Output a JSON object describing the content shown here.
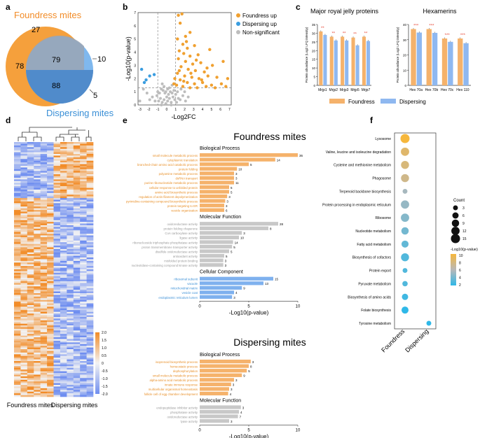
{
  "colors": {
    "orange": "#f5a55a",
    "orange_dark": "#f28c28",
    "blue": "#6fa8e8",
    "blue_light": "#8fc0f0",
    "blue_dark": "#3a8fd6",
    "grey": "#b5b5b5",
    "sig": "#e74c3c"
  },
  "panels": {
    "a": "a",
    "b": "b",
    "c": "c",
    "d": "d",
    "e": "e",
    "f": "f"
  },
  "panel_a": {
    "foundress_label": "Foundress mites",
    "dispersing_label": "Dispersing mites",
    "n_foundress_only": "78",
    "n_top": "27",
    "n_center": "79",
    "n_overlap": "88",
    "n_right_10": "10",
    "n_right_5": "5"
  },
  "chart_data": [
    {
      "id": "volcano",
      "type": "scatter",
      "xlabel": "-Log2FC",
      "ylabel": "-Log10(p-value)",
      "xlim": [
        -3.2,
        7.2
      ],
      "ylim": [
        0,
        7
      ],
      "xticks": [
        "-3",
        "-2",
        "-1",
        "0",
        "1",
        "2",
        "3",
        "4",
        "5",
        "6",
        "7"
      ],
      "yticks": [
        "0",
        "1",
        "2",
        "3",
        "4",
        "5",
        "6",
        "7"
      ],
      "legend": [
        "Foundress up",
        "Dispersing up",
        "Non-significant"
      ],
      "foundress_up": [
        [
          1.3,
          6.8
        ],
        [
          1.7,
          6.9
        ],
        [
          1.5,
          6.2
        ],
        [
          2.1,
          5.2
        ],
        [
          2.6,
          5.5
        ],
        [
          1.2,
          5.0
        ],
        [
          1.8,
          4.6
        ],
        [
          2.3,
          4.3
        ],
        [
          3.1,
          4.5
        ],
        [
          1.4,
          4.1
        ],
        [
          1.9,
          3.9
        ],
        [
          2.6,
          3.7
        ],
        [
          3.5,
          3.8
        ],
        [
          4.8,
          4.2
        ],
        [
          1.3,
          3.5
        ],
        [
          2.1,
          3.3
        ],
        [
          2.9,
          3.1
        ],
        [
          3.8,
          3.2
        ],
        [
          5.1,
          3.0
        ],
        [
          6.3,
          3.3
        ],
        [
          1.6,
          2.9
        ],
        [
          2.4,
          2.7
        ],
        [
          3.2,
          2.6
        ],
        [
          4.2,
          2.5
        ],
        [
          1.2,
          2.4
        ],
        [
          2.0,
          2.2
        ],
        [
          2.8,
          2.1
        ],
        [
          3.6,
          2.0
        ],
        [
          4.6,
          2.2
        ],
        [
          5.6,
          2.1
        ],
        [
          6.8,
          2.0
        ],
        [
          1.5,
          1.9
        ],
        [
          2.3,
          1.7
        ],
        [
          3.1,
          1.6
        ],
        [
          4.0,
          1.7
        ],
        [
          5.0,
          1.5
        ],
        [
          6.1,
          1.6
        ],
        [
          1.1,
          1.5
        ],
        [
          1.8,
          1.4
        ],
        [
          2.6,
          1.3
        ],
        [
          3.4,
          1.3
        ],
        [
          4.4,
          1.4
        ],
        [
          5.4,
          1.3
        ],
        [
          1.4,
          2.6
        ],
        [
          2.2,
          4.8
        ],
        [
          3.3,
          3.4
        ],
        [
          4.5,
          2.8
        ],
        [
          1.9,
          1.8
        ],
        [
          2.7,
          2.4
        ],
        [
          3.9,
          1.9
        ],
        [
          6.6,
          1.4
        ],
        [
          0.9,
          2.0
        ],
        [
          0.8,
          1.6
        ]
      ],
      "dispersing_up": [
        [
          -2.8,
          2.7
        ],
        [
          -2.3,
          1.9
        ],
        [
          -1.9,
          2.2
        ],
        [
          -1.4,
          2.3
        ],
        [
          -2.5,
          1.7
        ]
      ],
      "nonsig": [
        [
          -0.5,
          0.2
        ],
        [
          -0.3,
          0.4
        ],
        [
          -0.1,
          0.1
        ],
        [
          0.1,
          0.3
        ],
        [
          0.3,
          0.5
        ],
        [
          0.5,
          0.2
        ],
        [
          0.7,
          0.6
        ],
        [
          -0.7,
          0.5
        ],
        [
          -0.9,
          0.3
        ],
        [
          0.9,
          0.4
        ],
        [
          1.1,
          0.2
        ],
        [
          1.3,
          0.5
        ],
        [
          -1.1,
          0.7
        ],
        [
          0.2,
          0.8
        ],
        [
          -0.2,
          0.9
        ],
        [
          0.4,
          1.0
        ],
        [
          -0.4,
          1.1
        ],
        [
          0.6,
          0.9
        ],
        [
          -0.6,
          1.2
        ],
        [
          0.8,
          1.1
        ],
        [
          -0.8,
          0.9
        ],
        [
          0.0,
          0.6
        ],
        [
          1.5,
          0.4
        ],
        [
          1.8,
          0.7
        ],
        [
          2.1,
          0.3
        ],
        [
          2.4,
          0.6
        ],
        [
          -1.3,
          0.3
        ],
        [
          -1.6,
          0.6
        ],
        [
          -1.9,
          0.4
        ],
        [
          -2.2,
          0.9
        ],
        [
          0.3,
          1.3
        ],
        [
          -0.3,
          1.4
        ],
        [
          0.6,
          1.5
        ],
        [
          -0.5,
          1.6
        ],
        [
          0.1,
          1.2
        ],
        [
          -0.1,
          1.0
        ],
        [
          1.0,
          0.8
        ],
        [
          1.2,
          1.0
        ],
        [
          -1.0,
          1.0
        ],
        [
          2.0,
          1.0
        ],
        [
          -2.6,
          1.2
        ],
        [
          -3.0,
          0.3
        ],
        [
          0.5,
          0.0
        ],
        [
          -0.6,
          0.0
        ],
        [
          1.6,
          1.2
        ]
      ]
    },
    {
      "id": "mrjp",
      "type": "bar",
      "title": "Major royal jelly proteins",
      "ylabel": "Protein abundance (Log2 LFQ intensity)",
      "categories": [
        "Mrjp1",
        "Mrjp2",
        "Mrjp3",
        "Mrjp5",
        "Mrjp7"
      ],
      "ylim": [
        0,
        35
      ],
      "yticks": [
        "0",
        "5",
        "10",
        "15",
        "20",
        "25",
        "30",
        "35"
      ],
      "series": [
        {
          "name": "Foundress",
          "values": [
            31.0,
            28.0,
            28.0,
            27.5,
            28.0
          ]
        },
        {
          "name": "Dispersing",
          "values": [
            29.0,
            25.8,
            25.8,
            23.0,
            25.5
          ]
        }
      ],
      "sig": [
        "**",
        "**",
        "**",
        "**",
        "**"
      ]
    },
    {
      "id": "hex",
      "type": "bar",
      "title": "Hexamerins",
      "ylabel": "Protein abundance (Log2 LFQ intensity)",
      "categories": [
        "Hex 70a",
        "Hex 70b",
        "Hex 70c",
        "Hex 110"
      ],
      "ylim": [
        0,
        40
      ],
      "yticks": [
        "0",
        "10",
        "20",
        "30",
        "40"
      ],
      "series": [
        {
          "name": "Foundress",
          "values": [
            37.0,
            37.0,
            30.8,
            30.8
          ]
        },
        {
          "name": "Dispersing",
          "values": [
            34.7,
            34.5,
            28.6,
            27.7
          ]
        }
      ],
      "sig": [
        "***",
        "***",
        "***",
        "***"
      ]
    },
    {
      "id": "heatmap",
      "type": "heatmap",
      "xlabels": [
        "Foundress mites",
        "Dispersing mites"
      ],
      "colorbar_ticks": [
        "2.0",
        "1.5",
        "1.0",
        "0.5",
        "0",
        "-0.5",
        "-1.0",
        "-1.5",
        "-2.0"
      ],
      "clim": [
        -2,
        2
      ]
    },
    {
      "id": "go_foundress",
      "type": "bar",
      "title": "Foundress mites",
      "xlabel": "-Log10(p-value)",
      "xlim": [
        0,
        10
      ],
      "xticks": [
        "0",
        "5",
        "10"
      ],
      "groups": [
        {
          "name": "Biological Process",
          "color": "orange",
          "terms": [
            {
              "label": "small molecule metabolic process",
              "value": 10.0,
              "count": "36"
            },
            {
              "label": "cytoplasmic translation",
              "value": 7.7,
              "count": "14"
            },
            {
              "label": "branched-chain amino acid catabolic process",
              "value": 5.0,
              "count": "5"
            },
            {
              "label": "protein folding",
              "value": 3.8,
              "count": "10"
            },
            {
              "label": "polyamine metabolic process",
              "value": 3.5,
              "count": "3"
            },
            {
              "label": "dsRNA transport",
              "value": 3.5,
              "count": "3"
            },
            {
              "label": "purine ribonucleotide metabolic process",
              "value": 3.5,
              "count": "11"
            },
            {
              "label": "cellular response to unfolded protein",
              "value": 3.0,
              "count": "5"
            },
            {
              "label": "amino acid biosynthetic process",
              "value": 3.0,
              "count": "5"
            },
            {
              "label": "regulation of actin filament depolymerization",
              "value": 2.8,
              "count": "3"
            },
            {
              "label": "pyrimidine-containing compound biosynthetic process",
              "value": 2.6,
              "count": "3"
            },
            {
              "label": "protein targeting to ER",
              "value": 2.5,
              "count": "3"
            },
            {
              "label": "vesicle organization",
              "value": 2.5,
              "count": "6"
            }
          ]
        },
        {
          "name": "Molecular Function",
          "color": "grey",
          "terms": [
            {
              "label": "oxidoreductase activity",
              "value": 8.0,
              "count": "28"
            },
            {
              "label": "protein folding chaperone",
              "value": 7.0,
              "count": "8"
            },
            {
              "label": "CoA carboxylase activity",
              "value": 4.3,
              "count": "3"
            },
            {
              "label": "ligase activity",
              "value": 4.0,
              "count": "10"
            },
            {
              "label": "ribonucleoside triphosphate phosphatase activity",
              "value": 3.4,
              "count": "14"
            },
            {
              "label": "proton transmembrane transporter activity",
              "value": 3.3,
              "count": "5"
            },
            {
              "label": "disulfide oxidoreductase activity",
              "value": 3.0,
              "count": "5"
            },
            {
              "label": "antioxidant activity",
              "value": 2.5,
              "count": "5"
            },
            {
              "label": "misfolded protein binding",
              "value": 2.4,
              "count": "3"
            },
            {
              "label": "nucleotidase-containing compound kinase activity",
              "value": 2.4,
              "count": "3"
            }
          ]
        },
        {
          "name": "Cellular Component",
          "color": "blue",
          "terms": [
            {
              "label": "ribosomal subunit",
              "value": 7.5,
              "count": "15"
            },
            {
              "label": "vacuole",
              "value": 6.5,
              "count": "13"
            },
            {
              "label": "mitochondrial matrix",
              "value": 4.3,
              "count": "9"
            },
            {
              "label": "vesicle coat",
              "value": 3.5,
              "count": "4"
            },
            {
              "label": "endoplasmic reticulum lumen",
              "value": 3.3,
              "count": "3"
            }
          ]
        }
      ]
    },
    {
      "id": "go_dispersing",
      "type": "bar",
      "title": "Dispersing mites",
      "xlabel": "-Log10(p-value)",
      "xlim": [
        0,
        10
      ],
      "xticks": [
        "0",
        "5",
        "10"
      ],
      "groups": [
        {
          "name": "Biological Process",
          "color": "orange",
          "terms": [
            {
              "label": "isoprenoid biosynthetic process",
              "value": 5.2,
              "count": "3"
            },
            {
              "label": "homeostatic process",
              "value": 5.0,
              "count": "8"
            },
            {
              "label": "dephosphorylation",
              "value": 4.8,
              "count": "5"
            },
            {
              "label": "small molecule metabolic process",
              "value": 4.3,
              "count": "9"
            },
            {
              "label": "alpha-amino acid metabolic process",
              "value": 3.5,
              "count": "3"
            },
            {
              "label": "innate immune response",
              "value": 3.2,
              "count": "3"
            },
            {
              "label": "multicellular organismal homeostasis",
              "value": 3.0,
              "count": "3"
            },
            {
              "label": "follicle cell of egg chamber development",
              "value": 2.9,
              "count": "4"
            }
          ]
        },
        {
          "name": "Molecular Function",
          "color": "grey",
          "terms": [
            {
              "label": "endopeptidase inhibitor activity",
              "value": 4.2,
              "count": "3"
            },
            {
              "label": "phosphatase activity",
              "value": 4.0,
              "count": "4"
            },
            {
              "label": "oxidoreductase activity",
              "value": 3.9,
              "count": "7"
            },
            {
              "label": "lyase activity",
              "value": 3.0,
              "count": "3"
            }
          ]
        }
      ]
    },
    {
      "id": "kegg",
      "type": "scatter",
      "subtype": "bubble",
      "xcategories": [
        "Foundress",
        "Dispersing"
      ],
      "pathways": [
        {
          "name": "Lysosome",
          "group": 0,
          "count": 15,
          "p": 10
        },
        {
          "name": "Valine, leucine and isoleucine degradation",
          "group": 0,
          "count": 12,
          "p": 8.5
        },
        {
          "name": "Cysteine and methionine metabolism",
          "group": 0,
          "count": 11,
          "p": 8
        },
        {
          "name": "Phagosome",
          "group": 0,
          "count": 11,
          "p": 7.5
        },
        {
          "name": "Terpenoid backbone biosynthesis",
          "group": 0,
          "count": 3,
          "p": 5.5
        },
        {
          "name": "Protein processing in endoplasmic reticulum",
          "group": 0,
          "count": 12,
          "p": 5
        },
        {
          "name": "Ribosome",
          "group": 0,
          "count": 12,
          "p": 4.5
        },
        {
          "name": "Nucleotide metabolism",
          "group": 0,
          "count": 9,
          "p": 4
        },
        {
          "name": "Fatty acid metabolism",
          "group": 0,
          "count": 8,
          "p": 3.5
        },
        {
          "name": "Biosynthesis of cofactors",
          "group": 0,
          "count": 11,
          "p": 3
        },
        {
          "name": "Protein export",
          "group": 0,
          "count": 3,
          "p": 3
        },
        {
          "name": "Pyruvate metabolism",
          "group": 0,
          "count": 4,
          "p": 3
        },
        {
          "name": "Biosynthesis of amino acids",
          "group": 0,
          "count": 6,
          "p": 2.5
        },
        {
          "name": "Folate biosynthesis",
          "group": 0,
          "count": 8,
          "p": 2
        },
        {
          "name": "Tyrosine metabolism",
          "group": 1,
          "count": 3,
          "p": 2
        }
      ],
      "count_legend_title": "Count",
      "count_legend": [
        "3",
        "6",
        "9",
        "12",
        "15"
      ],
      "color_legend_title": "-Log10(p-value)",
      "color_legend": [
        "10",
        "8",
        "6",
        "4",
        "2"
      ],
      "plim": [
        2,
        10
      ]
    }
  ],
  "legend_c": {
    "foundress": "Foundress",
    "dispersing": "Dispersing"
  }
}
